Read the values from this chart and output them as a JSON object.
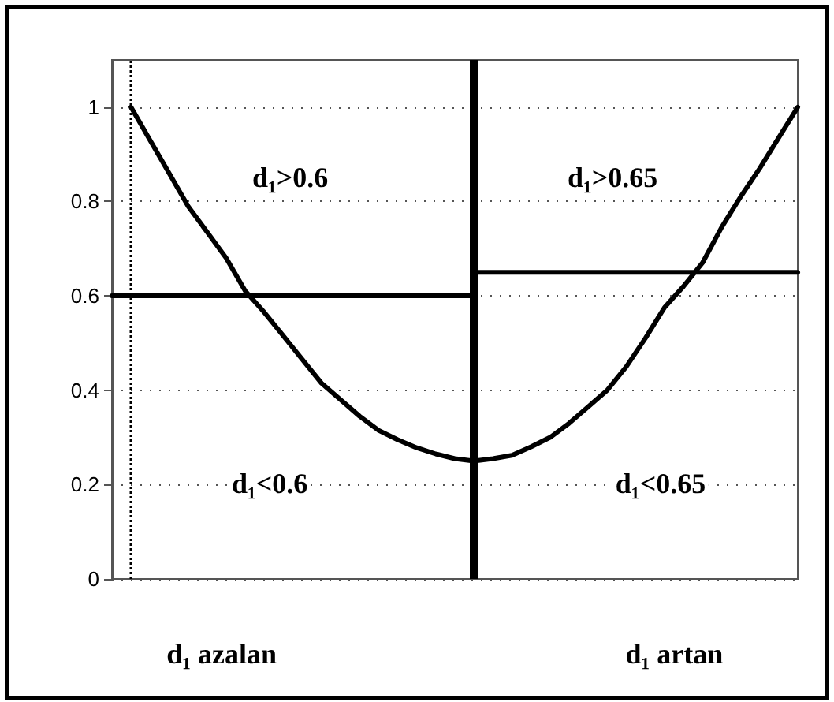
{
  "chart_data": {
    "type": "line",
    "categories": [
      null,
      null,
      null,
      null,
      null,
      null,
      null,
      null,
      null,
      null,
      null,
      null,
      null,
      null,
      null,
      null,
      null,
      null,
      null,
      null,
      null,
      null,
      null,
      null,
      null,
      null,
      null,
      null,
      null,
      null,
      null,
      null,
      null,
      null,
      null,
      null,
      null
    ],
    "ylim": [
      0,
      1.1
    ],
    "yticks": [
      0,
      0.2,
      0.4,
      0.6,
      0.8,
      1
    ],
    "grid": "y",
    "marker": "none",
    "line_style": "solid",
    "series": [
      {
        "color": "#000000",
        "values": [
          null,
          1.0,
          0.93,
          0.86,
          0.79,
          0.735,
          0.68,
          0.61,
          0.565,
          0.515,
          0.465,
          0.415,
          0.38,
          0.345,
          0.315,
          0.295,
          0.278,
          0.265,
          0.255,
          0.25,
          0.255,
          0.262,
          0.28,
          0.3,
          0.33,
          0.365,
          0.4,
          0.45,
          0.51,
          0.575,
          0.62,
          0.67,
          0.745,
          0.81,
          0.87,
          0.935,
          1.0
        ]
      },
      {
        "color": "#000000",
        "values": [
          0.6,
          0.6,
          0.6,
          0.6,
          0.6,
          0.6,
          0.6,
          0.6,
          0.6,
          0.6,
          0.6,
          0.6,
          0.6,
          0.6,
          0.6,
          0.6,
          0.6,
          0.6,
          0.6,
          0.6,
          null,
          null,
          null,
          null,
          null,
          null,
          null,
          null,
          null,
          null,
          null,
          null,
          null,
          null,
          null,
          null,
          null
        ]
      },
      {
        "color": "#000000",
        "values": [
          null,
          null,
          null,
          null,
          null,
          null,
          null,
          null,
          null,
          null,
          null,
          null,
          null,
          null,
          null,
          null,
          null,
          null,
          null,
          0.65,
          0.65,
          0.65,
          0.65,
          0.65,
          0.65,
          0.65,
          0.65,
          0.65,
          0.65,
          0.65,
          0.65,
          0.65,
          0.65,
          0.65,
          0.65,
          0.65,
          0.65
        ]
      }
    ],
    "annotations": [
      "d₁>0.6",
      "d₁>0.65",
      "d₁<0.6",
      "d₁<0.65",
      "d₁ azalan",
      "d₁ artan"
    ]
  }
}
